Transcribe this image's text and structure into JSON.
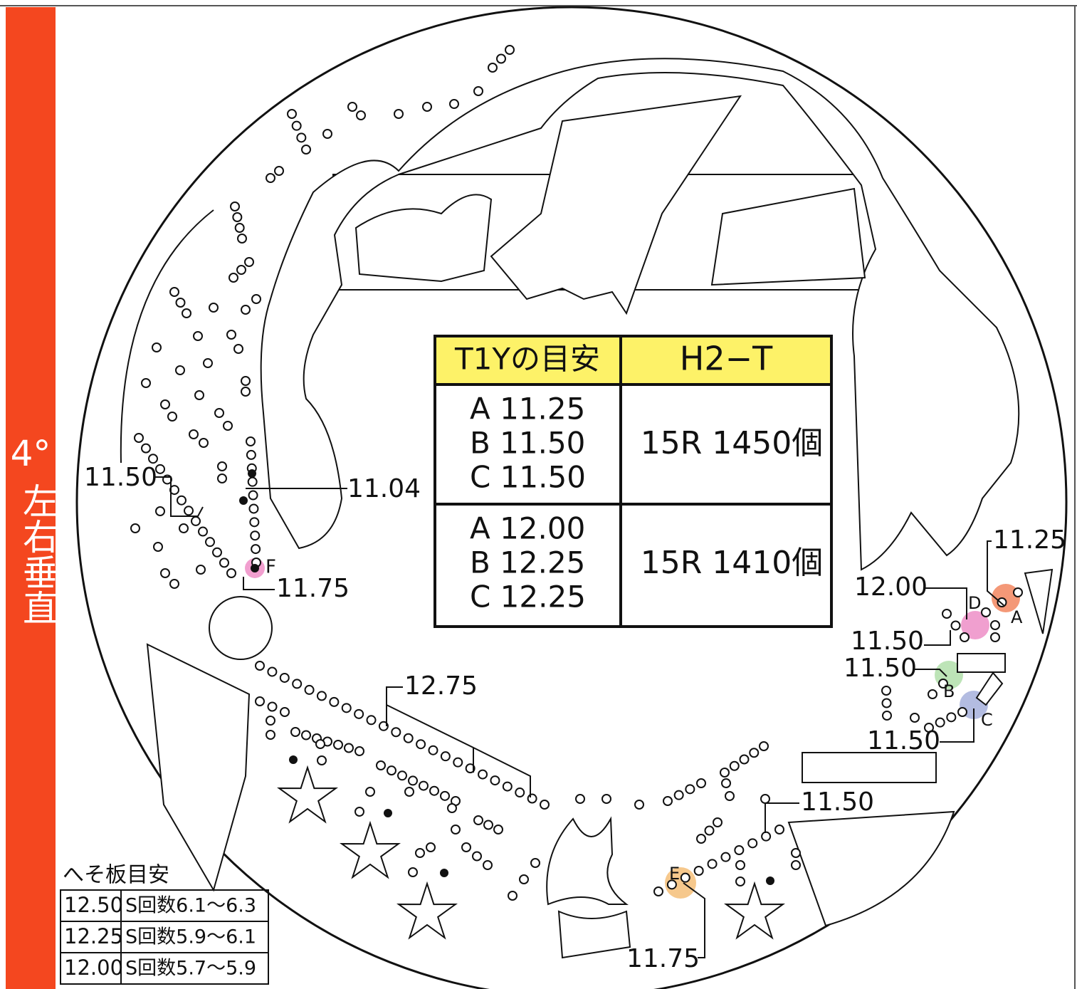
{
  "sidebar": {
    "angle": "4°",
    "label": "左右垂直"
  },
  "spec_table": {
    "headers": [
      "T1Yの目安",
      "H2−T"
    ],
    "rows": [
      {
        "settings": [
          "A 11.25",
          "B 11.50",
          "C 11.50"
        ],
        "result": "15R 1450個"
      },
      {
        "settings": [
          "A 12.00",
          "B 12.25",
          "C 12.25"
        ],
        "result": "15R 1410個"
      }
    ]
  },
  "annotations": [
    {
      "label": "11.50"
    },
    {
      "label": "11.04"
    },
    {
      "label": "F"
    },
    {
      "label": "11.75"
    },
    {
      "label": "12.75"
    },
    {
      "label": "11.25"
    },
    {
      "label": "12.00"
    },
    {
      "label": "D"
    },
    {
      "label": "A"
    },
    {
      "label": "11.50"
    },
    {
      "label": "11.50"
    },
    {
      "label": "B"
    },
    {
      "label": "C"
    },
    {
      "label": "11.50"
    },
    {
      "label": "11.50"
    },
    {
      "label": "E"
    },
    {
      "label": "11.75"
    }
  ],
  "heso_table": {
    "title": "へそ板目安",
    "rows": [
      [
        "12.50",
        "S回数6.1〜6.3"
      ],
      [
        "12.25",
        "S回数5.9〜6.1"
      ],
      [
        "12.00",
        "S回数5.7〜5.9"
      ]
    ]
  }
}
